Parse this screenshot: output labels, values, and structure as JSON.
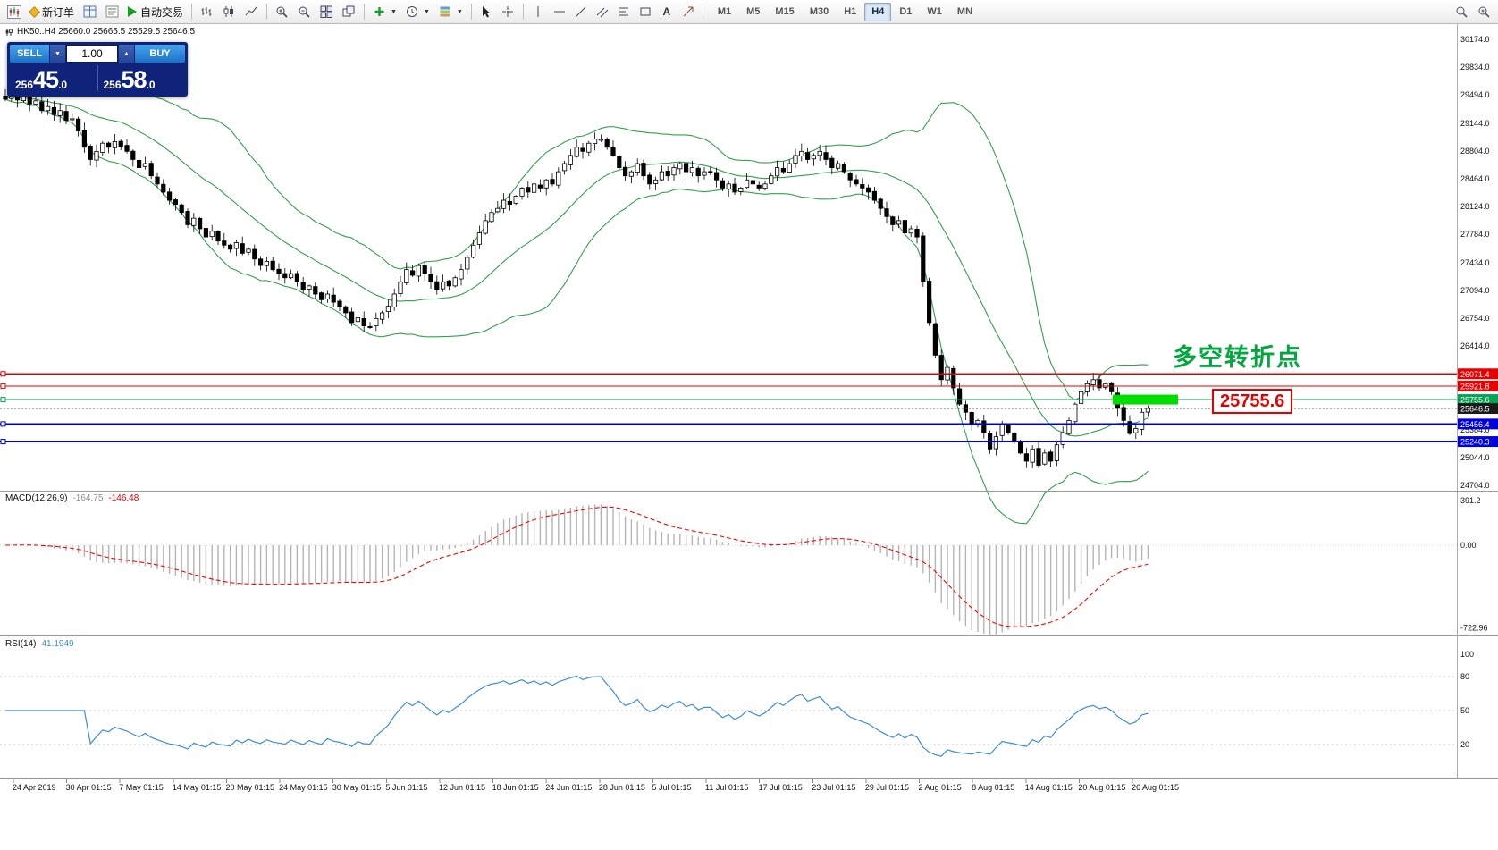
{
  "toolbar": {
    "new_order_label": "新订单",
    "autotrading_label": "自动交易",
    "timeframes": [
      "M1",
      "M5",
      "M15",
      "M30",
      "H1",
      "H4",
      "D1",
      "W1",
      "MN"
    ],
    "active_timeframe": "H4"
  },
  "chart": {
    "title": "HK50..H4 25660.0 25665.5 25529.5 25646.5"
  },
  "trade_panel": {
    "sell_label": "SELL",
    "buy_label": "BUY",
    "volume": "1.00",
    "sell_price_prefix": "256",
    "sell_price_big": "45",
    "sell_price_suffix": ".0",
    "buy_price_prefix": "256",
    "buy_price_big": "58",
    "buy_price_suffix": ".0"
  },
  "indicators": {
    "macd_name": "MACD(12,26,9)",
    "macd_value": "-164.75",
    "macd_signal": "-146.48",
    "rsi_name": "RSI(14)",
    "rsi_value": "41.1949"
  },
  "annotations": {
    "turning_point": "多空转折点",
    "price_label": "25755.6"
  },
  "chart_data": {
    "type": "candlestick",
    "symbol": "HK50",
    "period": "H4",
    "ohlc_line": {
      "open": 25660.0,
      "high": 25665.5,
      "low": 25529.5,
      "close": 25646.5
    },
    "closes": [
      29440,
      29500,
      29430,
      29470,
      29380,
      29420,
      29300,
      29350,
      29250,
      29300,
      29180,
      29200,
      29050,
      28850,
      28700,
      28800,
      28900,
      28850,
      28920,
      28860,
      28800,
      28700,
      28600,
      28650,
      28500,
      28400,
      28300,
      28200,
      28150,
      28050,
      27900,
      27980,
      27850,
      27750,
      27820,
      27700,
      27650,
      27600,
      27680,
      27550,
      27600,
      27480,
      27400,
      27450,
      27350,
      27300,
      27250,
      27300,
      27200,
      27100,
      27150,
      27050,
      26980,
      27050,
      26950,
      26900,
      26820,
      26700,
      26760,
      26660,
      26650,
      26750,
      26820,
      26900,
      27050,
      27200,
      27350,
      27280,
      27400,
      27300,
      27200,
      27100,
      27200,
      27150,
      27250,
      27350,
      27500,
      27650,
      27800,
      27950,
      28050,
      28100,
      28200,
      28150,
      28250,
      28350,
      28300,
      28400,
      28350,
      28450,
      28400,
      28550,
      28650,
      28750,
      28850,
      28800,
      28900,
      28950,
      28950,
      28850,
      28750,
      28600,
      28500,
      28550,
      28650,
      28500,
      28400,
      28450,
      28550,
      28500,
      28600,
      28650,
      28550,
      28600,
      28500,
      28550,
      28550,
      28450,
      28350,
      28400,
      28300,
      28350,
      28450,
      28400,
      28350,
      28400,
      28500,
      28600,
      28550,
      28650,
      28750,
      28800,
      28700,
      28750,
      28800,
      28700,
      28600,
      28650,
      28550,
      28450,
      28400,
      28350,
      28300,
      28200,
      28100,
      28000,
      27900,
      27950,
      27800,
      27850,
      27750,
      27200,
      26700,
      26300,
      26000,
      26150,
      25900,
      25700,
      25600,
      25450,
      25500,
      25350,
      25150,
      25300,
      25450,
      25350,
      25250,
      25100,
      25000,
      25150,
      24950,
      25100,
      25000,
      25200,
      25350,
      25500,
      25700,
      25850,
      25950,
      26000,
      25900,
      25950,
      25850,
      25650,
      25500,
      25340,
      25400,
      25600,
      25646.5
    ],
    "x_labels": [
      "24 Apr 2019",
      "30 Apr 01:15",
      "7 May 01:15",
      "14 May 01:15",
      "20 May 01:15",
      "24 May 01:15",
      "30 May 01:15",
      "5 Jun 01:15",
      "12 Jun 01:15",
      "18 Jun 01:15",
      "24 Jun 01:15",
      "28 Jun 01:15",
      "5 Jul 01:15",
      "11 Jul 01:15",
      "17 Jul 01:15",
      "23 Jul 01:15",
      "29 Jul 01:15",
      "2 Aug 01:15",
      "8 Aug 01:15",
      "14 Aug 01:15",
      "20 Aug 01:15",
      "26 Aug 01:15"
    ],
    "y_ticks": [
      "30174.0",
      "29834.0",
      "29494.0",
      "29144.0",
      "28804.0",
      "28464.0",
      "28124.0",
      "27784.0",
      "27434.0",
      "27094.0",
      "26754.0",
      "26414.0",
      "25384.0",
      "25044.0",
      "24704.0"
    ],
    "hlines": [
      {
        "price": 26071.4,
        "label": "26071.4",
        "color": "#e60000",
        "kind": "resistance"
      },
      {
        "price": 25921.8,
        "label": "25921.8",
        "color": "#e60000",
        "kind": "resistance"
      },
      {
        "price": 25755.6,
        "label": "25755.6",
        "color": "#00a651",
        "kind": "pivot"
      },
      {
        "price": 25646.5,
        "label": "25646.5",
        "color": "#1a1a1a",
        "kind": "current"
      },
      {
        "price": 25456.4,
        "label": "25456.4",
        "color": "#0000d8",
        "kind": "support"
      },
      {
        "price": 25240.3,
        "label": "25240.3",
        "color": "#0000d8",
        "kind": "support"
      }
    ],
    "bollinger": {
      "period": 20,
      "deviation": 2,
      "color": "#33a04d"
    },
    "macd": {
      "fast": 12,
      "slow": 26,
      "signal": 9,
      "axis_labels": [
        "391.2",
        "0.00",
        "-722.96"
      ],
      "hist_color": "#b4b4b4",
      "signal_color": "#ff0000"
    },
    "rsi": {
      "period": 14,
      "axis_labels": [
        "100",
        "80",
        "50",
        "20"
      ],
      "levels": [
        80,
        50,
        20
      ],
      "color": "#3c8dde"
    },
    "highlight": {
      "price": 25755.6,
      "color": "#00dd00"
    }
  }
}
